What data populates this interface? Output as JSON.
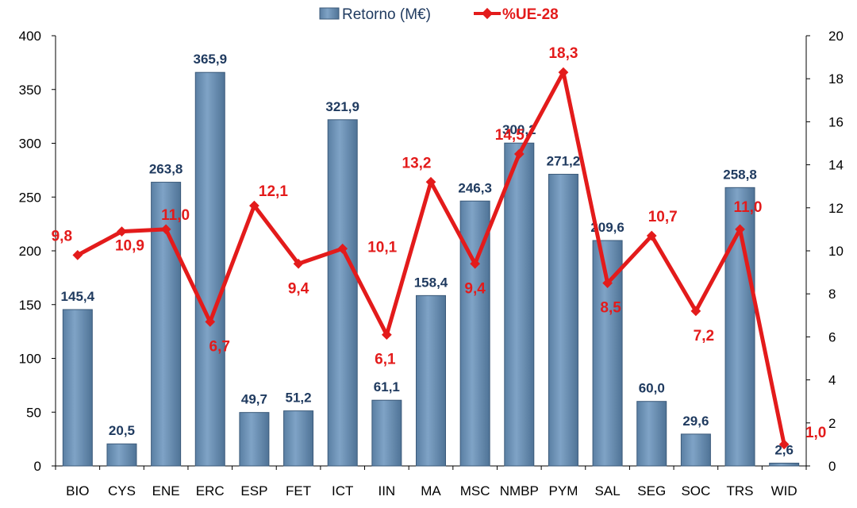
{
  "chart_data": {
    "type": "bar",
    "categories": [
      "BIO",
      "CYS",
      "ENE",
      "ERC",
      "ESP",
      "FET",
      "ICT",
      "IIN",
      "MA",
      "MSC",
      "NMBP",
      "PYM",
      "SAL",
      "SEG",
      "SOC",
      "TRS",
      "WID"
    ],
    "series": [
      {
        "name": "Retorno (M€)",
        "type": "bar",
        "axis": "left",
        "color": "#6a90b4",
        "values": [
          145.4,
          20.5,
          263.8,
          365.9,
          49.7,
          51.2,
          321.9,
          61.1,
          158.4,
          246.3,
          300.2,
          271.2,
          209.6,
          60.0,
          29.6,
          258.8,
          2.6
        ],
        "labels": [
          "145,4",
          "20,5",
          "263,8",
          "365,9",
          "49,7",
          "51,2",
          "321,9",
          "61,1",
          "158,4",
          "246,3",
          "300,2",
          "271,2",
          "209,6",
          "60,0",
          "29,6",
          "258,8",
          "2,6"
        ]
      },
      {
        "name": "%UE-28",
        "type": "line",
        "axis": "right",
        "color": "#e31b1b",
        "values": [
          9.8,
          10.9,
          11.0,
          6.7,
          12.1,
          9.4,
          10.1,
          6.1,
          13.2,
          9.4,
          14.5,
          18.3,
          8.5,
          10.7,
          7.2,
          11.0,
          1.0
        ],
        "labels": [
          "9,8",
          "10,9",
          "11,0",
          "6,7",
          "12,1",
          "9,4",
          "10,1",
          "6,1",
          "13,2",
          "9,4",
          "14,5",
          "18,3",
          "8,5",
          "10,7",
          "7,2",
          "11,0",
          "1,0"
        ]
      }
    ],
    "y_left": {
      "min": 0,
      "max": 400,
      "ticks": [
        0,
        50,
        100,
        150,
        200,
        250,
        300,
        350,
        400
      ]
    },
    "y_right": {
      "min": 0,
      "max": 20,
      "ticks": [
        0,
        2,
        4,
        6,
        8,
        10,
        12,
        14,
        16,
        18,
        20
      ]
    },
    "legend_position": "top-center",
    "grid": false
  }
}
